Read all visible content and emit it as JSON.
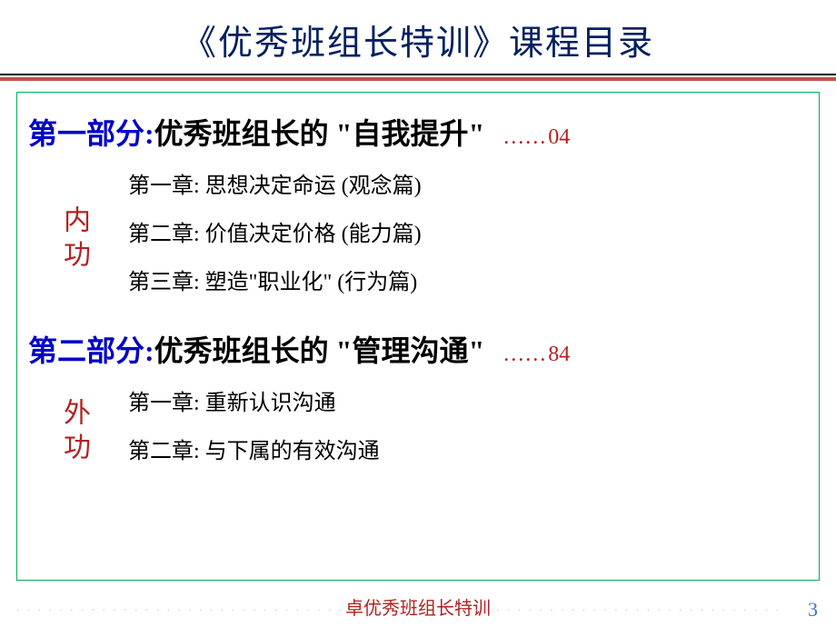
{
  "colors": {
    "title": "#002060",
    "part": "#0000c8",
    "red": "#b22222",
    "page_blue": "#4472c4",
    "hr_red": "#c0504d",
    "box_border": "#00b050"
  },
  "title": "《优秀班组长特训》课程目录",
  "sections": [
    {
      "part_label": "第一部分:",
      "part_title": " 优秀班组长的 \"自我提升\"",
      "dots": "……",
      "page": "04",
      "vertical_label": "内功",
      "chapters": [
        "第一章: 思想决定命运 (观念篇)",
        "第二章: 价值决定价格 (能力篇)",
        "第三章: 塑造\"职业化\" (行为篇)"
      ]
    },
    {
      "part_label": "第二部分:",
      "part_title": " 优秀班组长的 \"管理沟通\"",
      "dots": "……",
      "page": "84",
      "vertical_label": "外功",
      "chapters": [
        "第一章: 重新认识沟通",
        "第二章: 与下属的有效沟通"
      ]
    }
  ],
  "footer": "卓优秀班组长特训",
  "page_number": "3"
}
